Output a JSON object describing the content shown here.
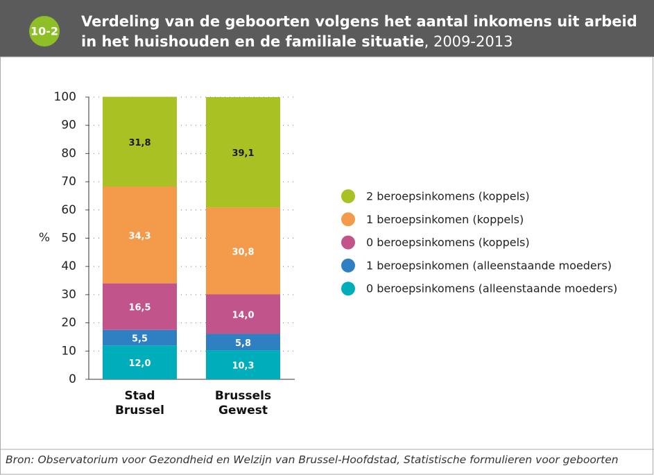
{
  "badge": "10-2",
  "title": "Verdeling van de geboorten volgens het aantal inkomens uit arbeid in het huishouden en de familiale situatie",
  "title_period": ", 2009-2013",
  "source": "Bron: Observatorium voor Gezondheid en Welzijn van Brussel-Hoofdstad, Statistische formulieren voor geboorten",
  "chart_data": {
    "type": "stacked_bar",
    "ylabel": "%",
    "categories": [
      "Stad Brussel",
      "Brussels Gewest"
    ],
    "ylim": [
      0,
      100
    ],
    "yticks": [
      0,
      10,
      20,
      30,
      40,
      50,
      60,
      70,
      80,
      90,
      100
    ],
    "grid": true,
    "legend": "right",
    "series": [
      {
        "name": "0 beroepsinkomens (alleenstaande moeders)",
        "color": "#00aebb",
        "label_color": "#ffffff",
        "values": [
          12.0,
          10.3
        ],
        "value_labels": [
          "12,0",
          "10,3"
        ]
      },
      {
        "name": "1 beroepsinkomen (alleenstaande moeders)",
        "color": "#2f80c3",
        "label_color": "#ffffff",
        "values": [
          5.5,
          5.8
        ],
        "value_labels": [
          "5,5",
          "5,8"
        ]
      },
      {
        "name": "0 beroepsinkomens (koppels)",
        "color": "#c1558b",
        "label_color": "#ffffff",
        "values": [
          16.5,
          14.0
        ],
        "value_labels": [
          "16,5",
          "14,0"
        ]
      },
      {
        "name": "1 beroepsinkomen (koppels)",
        "color": "#f39a4b",
        "label_color": "#ffffff",
        "values": [
          34.3,
          30.8
        ],
        "value_labels": [
          "34,3",
          "30,8"
        ]
      },
      {
        "name": "2 beroepsinkomens (koppels)",
        "color": "#a9c123",
        "label_color": "#1a1a1a",
        "values": [
          31.8,
          39.1
        ],
        "value_labels": [
          "31,8",
          "39,1"
        ]
      }
    ]
  }
}
